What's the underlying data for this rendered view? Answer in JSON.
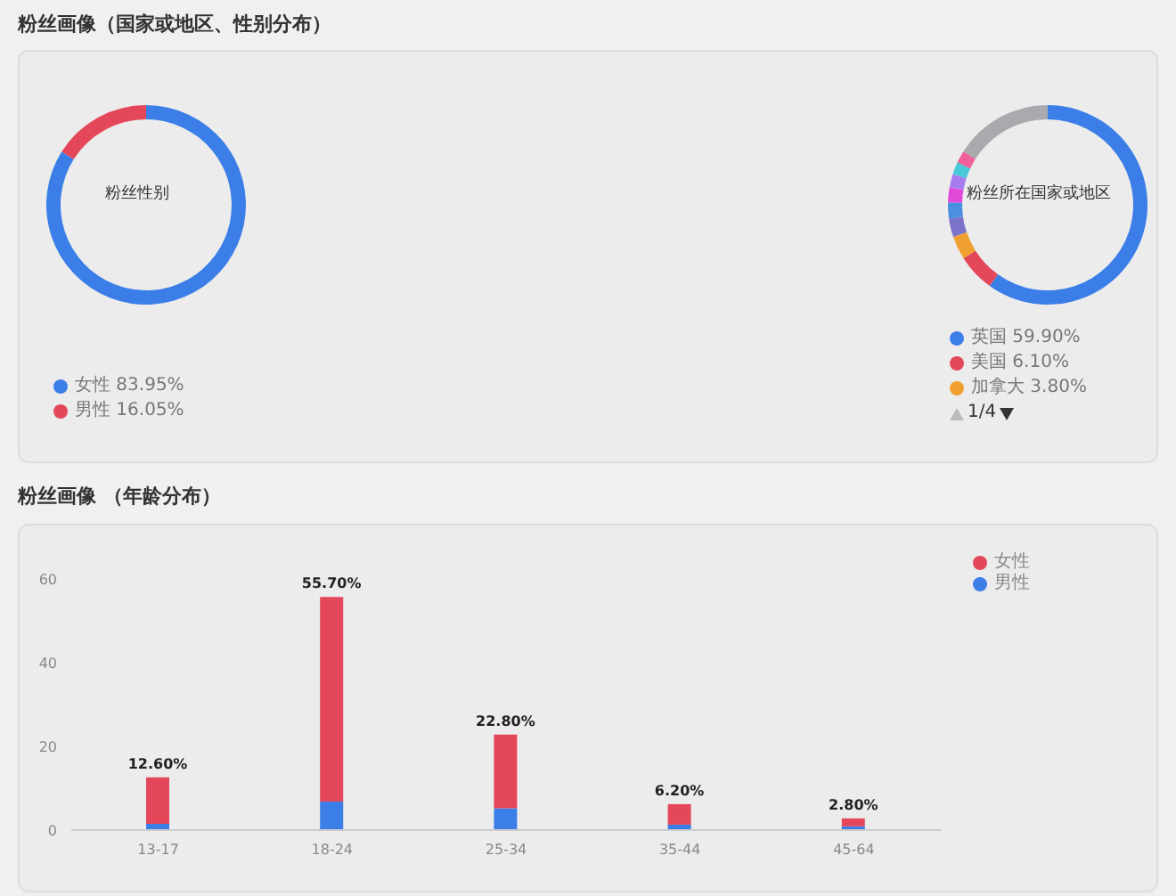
{
  "chart_data": [
    {
      "type": "donut",
      "title": "粉丝画像（国家或地区、性别分布）",
      "subtitle": "粉丝性别",
      "categories": [
        "女性",
        "男性"
      ],
      "values": [
        83.95,
        16.05
      ],
      "value_labels": [
        "83.95%",
        "16.05%"
      ],
      "colors": [
        "#3b7ee8",
        "#e5475a"
      ],
      "legend": "bottom left"
    },
    {
      "type": "donut",
      "subtitle": "粉丝所在国家或地区",
      "categories": [
        "英国",
        "美国",
        "加拿大",
        null,
        null,
        null,
        null,
        null,
        null,
        null
      ],
      "values": [
        59.9,
        6.1,
        3.8,
        3.0,
        2.6,
        2.4,
        2.2,
        2.0,
        2.0,
        16.0
      ],
      "value_labels": [
        "59.90%",
        "6.10%",
        "3.80%",
        null,
        null,
        null,
        null,
        null,
        null,
        null
      ],
      "colors": [
        "#3b7ee8",
        "#e5475a",
        "#f0a030",
        "#7b73c9",
        "#4a8fe0",
        "#e048d8",
        "#a67cf0",
        "#48c8d8",
        "#f0609c",
        "#a9a9ae"
      ],
      "legend": "bottom",
      "annotations": [
        "1/4"
      ]
    },
    {
      "type": "bar",
      "title": "粉丝画像 （年龄分布）",
      "categories": [
        "13-17",
        "18-24",
        "25-34",
        "35-44",
        "45-64"
      ],
      "stacked": true,
      "series": [
        {
          "name": "男性",
          "color": "#3b7ee8",
          "values": [
            1.5,
            6.8,
            5.2,
            1.3,
            0.9
          ]
        },
        {
          "name": "女性",
          "color": "#e5475a",
          "values": [
            11.1,
            48.9,
            17.6,
            4.9,
            1.9
          ]
        }
      ],
      "totals": [
        "12.60%",
        "55.70%",
        "22.80%",
        "6.20%",
        "2.80%"
      ],
      "ylim": [
        0,
        60
      ],
      "yticks": [
        0,
        20,
        40,
        60
      ],
      "grid": false,
      "legend": "top right"
    }
  ]
}
